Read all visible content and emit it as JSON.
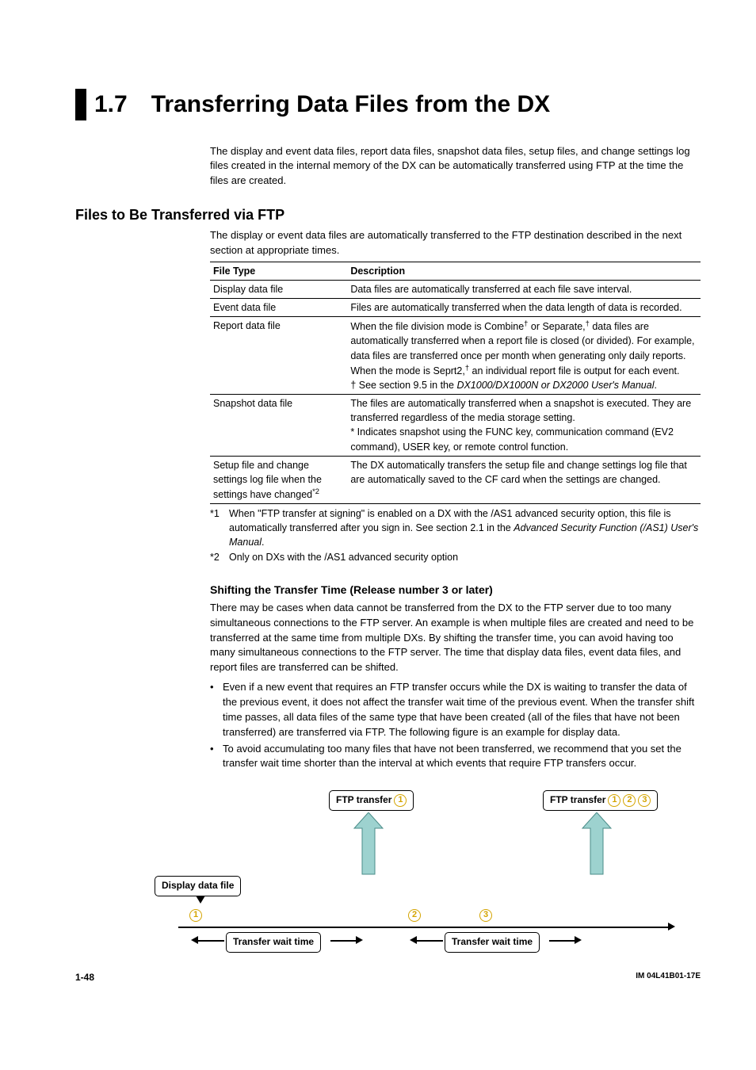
{
  "heading": {
    "num": "1.7",
    "title": "Transferring Data Files from the DX"
  },
  "intro": "The display and event data files, report data files, snapshot data files, setup files, and change settings log files created in the internal memory of the DX can be automatically transferred using FTP at the time the files are created.",
  "section1": {
    "title": "Files to Be Transferred via FTP",
    "lead": "The display or event data files are automatically transferred to the FTP destination described in the next section at appropriate times.",
    "columns": [
      "File Type",
      "Description"
    ],
    "rows": [
      {
        "a": "Display data file",
        "b": "Data files are automatically transferred at each file save interval."
      },
      {
        "a": "Event data file",
        "b": "Files are automatically transferred when the data length of data is recorded."
      },
      {
        "a": "Report data file",
        "b_html": "When the file division mode is Combine<sup>†</sup> or Separate,<sup>†</sup> data files are automatically transferred when a report file is closed (or divided). For example, data files are transferred once per month when generating only daily reports.<br>When the mode is Seprt2,<sup>†</sup> an individual report file is output for each event.<br>† See section 9.5 in the <span class=\"italic\">DX1000/DX1000N or DX2000 User's Manual</span>."
      },
      {
        "a": "Snapshot data file",
        "b_html": "The files are automatically transferred when a snapshot is executed. They are transferred regardless of the media storage setting.<br>* Indicates snapshot using the FUNC key, communication command (EV2 command), USER key, or remote control function."
      },
      {
        "a_html": "Setup file and change settings log file when the settings have changed<sup>*2</sup>",
        "b": "The DX automatically transfers the setup file and change settings log file that are automatically saved to the CF card when the settings are changed."
      }
    ],
    "footnotes": [
      {
        "key": "*1",
        "text_html": "When \"FTP transfer at signing\" is enabled on a DX with the /AS1 advanced security option, this file is automatically transferred after you sign in. See section 2.1 in the <span class=\"italic\">Advanced Security Function (/AS1) User's Manual</span>."
      },
      {
        "key": "*2",
        "text": "Only on DXs with the /AS1 advanced security option"
      }
    ]
  },
  "section2": {
    "title": "Shifting the Transfer Time (Release number 3 or later)",
    "para": "There may be cases when data cannot be transferred from the DX to the FTP server due to too many simultaneous connections to the FTP server. An example is when multiple files are created and need to be transferred at the same time from multiple DXs. By shifting the transfer time, you can avoid having too many simultaneous connections to the FTP server. The time that display data files, event data files, and report files are transferred can be shifted.",
    "bullets": [
      "Even if a new event that requires an FTP transfer occurs while the DX is waiting to transfer the data of the previous event, it does not affect the transfer wait time of the previous event. When the transfer shift time passes, all data files of the same type that have been created (all of the files that have not been transferred) are transferred via FTP. The following figure is an example for display data.",
      "To avoid accumulating too many files that have not been transferred, we recommend that you set the transfer wait time shorter than the interval at which events that require FTP transfers occur."
    ]
  },
  "diagram": {
    "labels": {
      "ftp_left": "FTP transfer",
      "ftp_right": "FTP transfer",
      "display_data": "Display data file",
      "wait": "Transfer wait time"
    },
    "nums_left": [
      "1"
    ],
    "nums_right": [
      "1",
      "2",
      "3"
    ],
    "timeline_nums": [
      "1",
      "2",
      "3"
    ],
    "colors": {
      "arrow_fill": "#9dd2cf",
      "arrow_stroke": "#4a8c88",
      "circle_color": "#d4a400",
      "line": "#000000"
    }
  },
  "footer": {
    "page": "1-48",
    "docid": "IM 04L41B01-17E"
  }
}
